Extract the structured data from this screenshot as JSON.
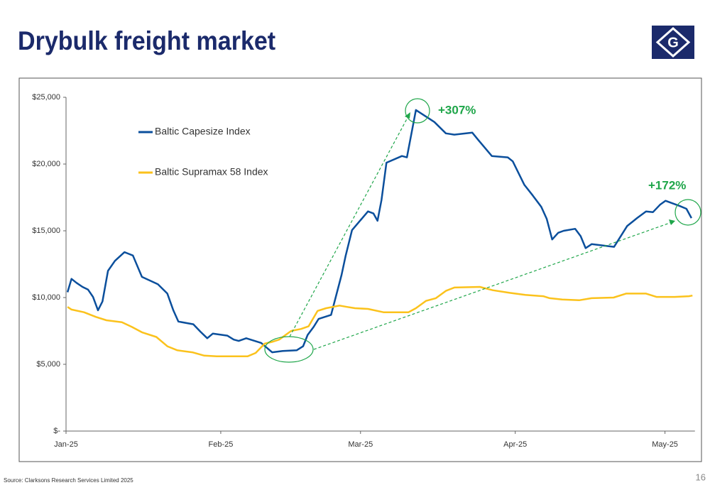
{
  "title": "Drybulk freight market",
  "logo": "G",
  "source": "Source: Clarksons Research Services Limited 2025",
  "page_number": "16",
  "chart_data": {
    "type": "line",
    "xlim": [
      0,
      126
    ],
    "xticks": [
      {
        "value": 0,
        "label": "Jan-25"
      },
      {
        "value": 31,
        "label": "Feb-25"
      },
      {
        "value": 59,
        "label": "Mar-25"
      },
      {
        "value": 90,
        "label": "Apr-25"
      },
      {
        "value": 120,
        "label": "May-25"
      }
    ],
    "ylim": [
      0,
      25000
    ],
    "yticks": [
      {
        "value": 0,
        "label": "$-"
      },
      {
        "value": 5000,
        "label": "$5,000"
      },
      {
        "value": 10000,
        "label": "$10,000"
      },
      {
        "value": 15000,
        "label": "$15,000"
      },
      {
        "value": 20000,
        "label": "$20,000"
      },
      {
        "value": 25000,
        "label": "$25,000"
      }
    ],
    "annotations": [
      "+307%",
      "+172%"
    ],
    "series": [
      {
        "name": "Baltic Capesize Index",
        "color": "#0b4f9c",
        "x": [
          0.3,
          1.1,
          2.1,
          3.3,
          4.4,
          5.4,
          6.4,
          7.3,
          8.4,
          9.8,
          11.7,
          12.4,
          13.4,
          15.2,
          18.4,
          20.3,
          21.5,
          22.5,
          25.5,
          26.9,
          28.3,
          29.4,
          32.3,
          33.6,
          34.6,
          36.1,
          39.1,
          41.3,
          43.4,
          46.2,
          47.5,
          48.4,
          49.6,
          50.6,
          53.1,
          55.2,
          56,
          57.3,
          60.5,
          61.6,
          62.4,
          63.2,
          64.2,
          67.3,
          68.3,
          70.1,
          73.8,
          76.1,
          77.8,
          81.4,
          82.6,
          85.3,
          88.5,
          89.5,
          91.8,
          93.5,
          95.2,
          96.3,
          97.4,
          98.6,
          99.7,
          102,
          103.1,
          104.1,
          105.3,
          109.8,
          112.4,
          114.4,
          116.2,
          117.6,
          119,
          120.1,
          123,
          124.3,
          125.3
        ],
        "values": [
          10400,
          11400,
          11100,
          10800,
          10600,
          10050,
          9050,
          9700,
          12000,
          12750,
          13400,
          13300,
          13150,
          11550,
          11000,
          10300,
          9050,
          8200,
          8000,
          7450,
          6950,
          7300,
          7150,
          6850,
          6750,
          6950,
          6600,
          5900,
          6000,
          6050,
          6350,
          7200,
          7800,
          8400,
          8700,
          11700,
          13100,
          15050,
          16450,
          16300,
          15750,
          17300,
          20100,
          20600,
          20500,
          24050,
          23150,
          22300,
          22200,
          22350,
          21800,
          20600,
          20500,
          20200,
          18450,
          17650,
          16800,
          15900,
          14350,
          14850,
          15000,
          15150,
          14600,
          13700,
          14000,
          13800,
          15350,
          15950,
          16450,
          16400,
          16950,
          17250,
          16850,
          16650,
          15950
        ]
      },
      {
        "name": "Baltic Supramax 58 Index",
        "color": "#fbc21c",
        "x": [
          0.3,
          1.1,
          3.6,
          6,
          8.1,
          11.2,
          13.2,
          15.2,
          18.1,
          20.3,
          22.3,
          25.3,
          27.7,
          30.2,
          36.4,
          38,
          39.8,
          41.5,
          42.7,
          45.1,
          47.1,
          48.6,
          50.4,
          52.1,
          54.8,
          56.3,
          57.9,
          60.5,
          63.6,
          68.6,
          70.1,
          72.1,
          74.1,
          76.1,
          77.8,
          82.9,
          85.5,
          88.9,
          92,
          95.6,
          96.9,
          99.4,
          102.8,
          105.3,
          109.7,
          112.2,
          116.2,
          118.3,
          121.9,
          124.8,
          125.5
        ],
        "values": [
          9300,
          9100,
          8900,
          8550,
          8300,
          8150,
          7800,
          7400,
          7050,
          6350,
          6050,
          5900,
          5650,
          5600,
          5600,
          5850,
          6550,
          6700,
          6850,
          7500,
          7650,
          7850,
          9000,
          9200,
          9400,
          9300,
          9200,
          9150,
          8900,
          8900,
          9200,
          9750,
          9950,
          10500,
          10750,
          10800,
          10550,
          10350,
          10200,
          10100,
          9950,
          9850,
          9800,
          9950,
          10000,
          10300,
          10300,
          10050,
          10050,
          10100,
          10150
        ]
      }
    ]
  }
}
